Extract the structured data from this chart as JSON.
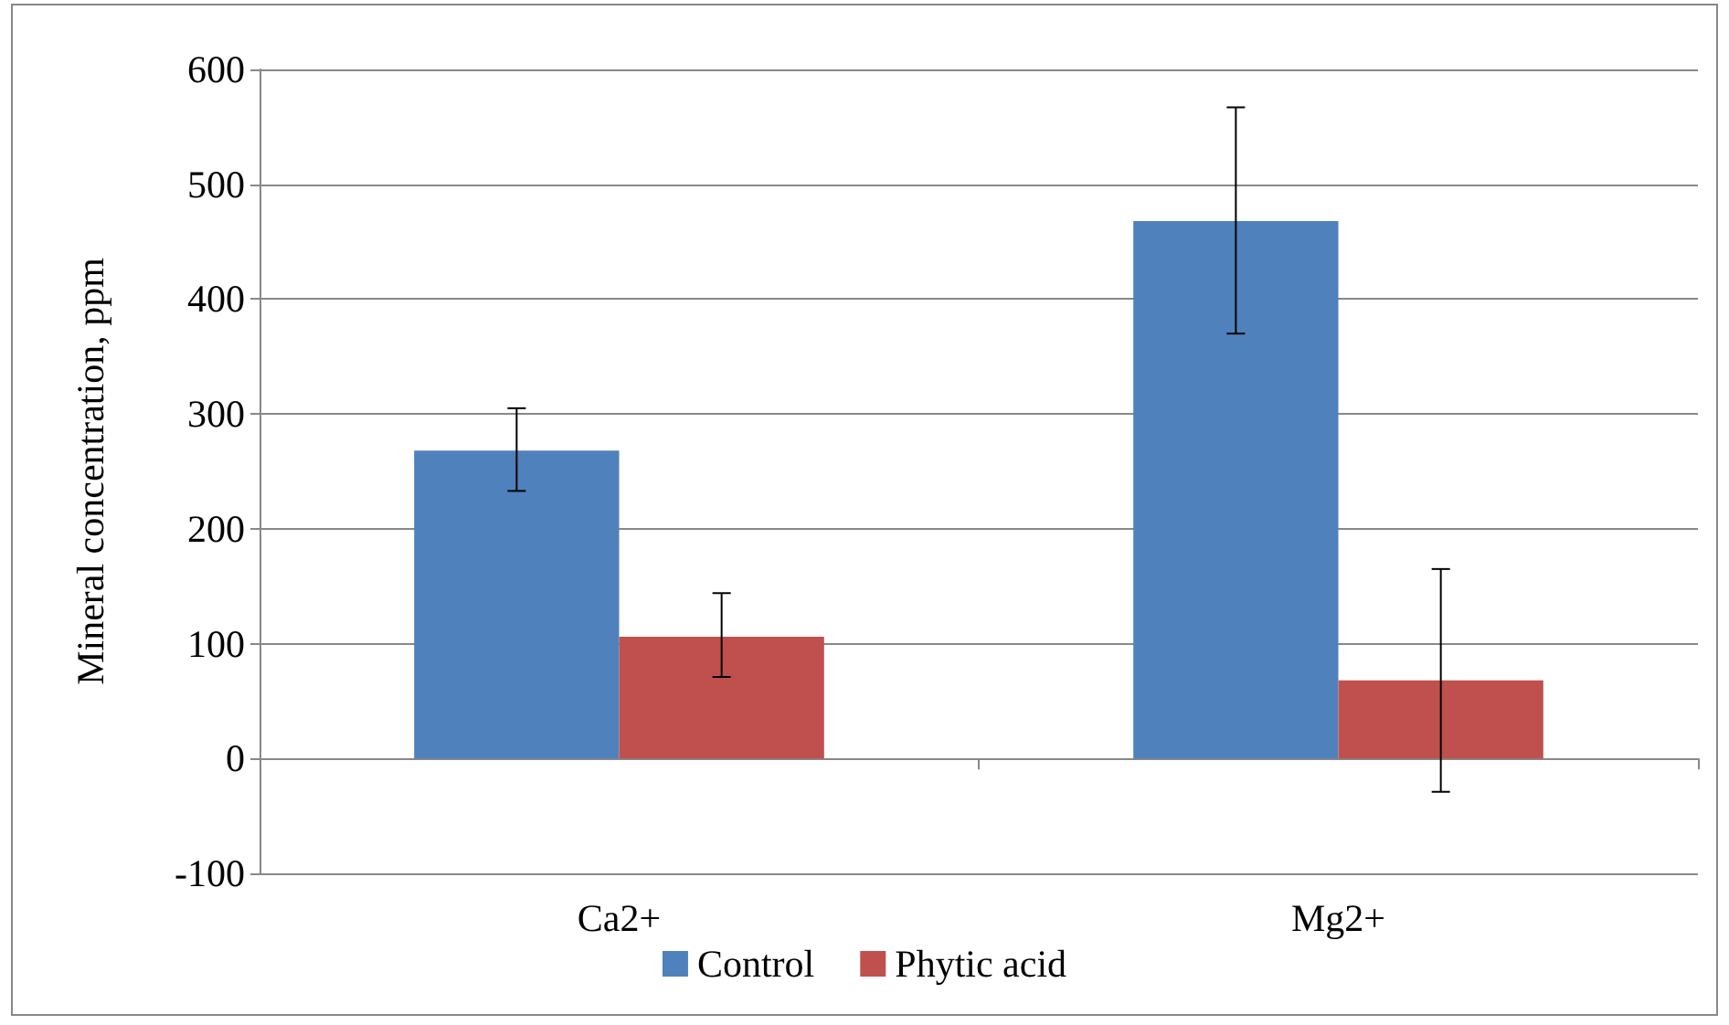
{
  "chart_data": {
    "type": "bar",
    "ylabel": "Mineral concentration, ppm",
    "categories": [
      "Ca2+",
      "Mg2+"
    ],
    "series": [
      {
        "name": "Control",
        "color": "#4f81bd",
        "values": [
          268,
          468
        ],
        "errors": [
          [
            233,
            305
          ],
          [
            370,
            567
          ]
        ]
      },
      {
        "name": "Phytic acid",
        "color": "#c0504d",
        "values": [
          106,
          68
        ],
        "errors": [
          [
            71,
            144
          ],
          [
            -29,
            165
          ]
        ]
      }
    ],
    "ylim": [
      -100,
      600
    ],
    "yticks": [
      -100,
      0,
      100,
      200,
      300,
      400,
      500,
      600
    ],
    "grid": "y",
    "legend": "bottom"
  }
}
